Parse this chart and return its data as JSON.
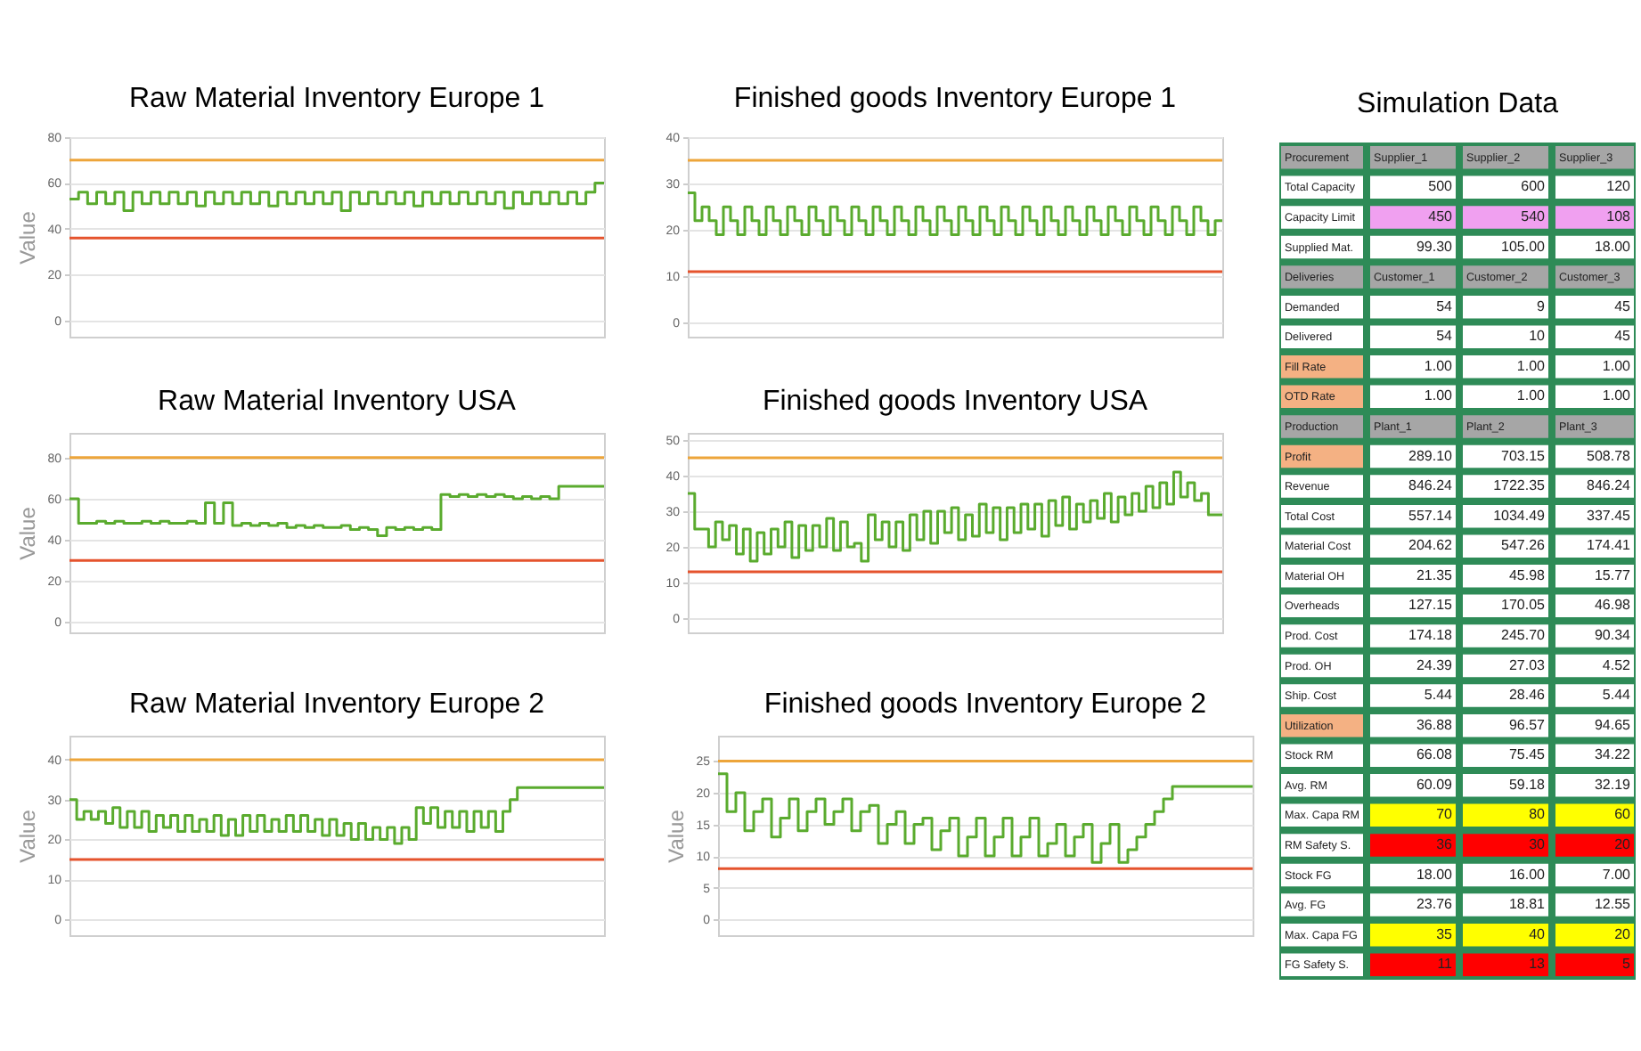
{
  "chart_data": [
    {
      "type": "step",
      "title": "Raw Material Inventory Europe 1",
      "ylabel": "Value",
      "categories": [
        null,
        null,
        null,
        null,
        null,
        null,
        null,
        null,
        null,
        null,
        null,
        null,
        null,
        null,
        null,
        null,
        null,
        null,
        null,
        null,
        null,
        null,
        null,
        null,
        null,
        null,
        null,
        null,
        null,
        null,
        null,
        null,
        null,
        null,
        null,
        null,
        null,
        null,
        null,
        null,
        null,
        null,
        null,
        null,
        null,
        null,
        null,
        null,
        null,
        null,
        null,
        null,
        null,
        null,
        null,
        null,
        null,
        null,
        null,
        null
      ],
      "ylim": [
        -7,
        80
      ],
      "yticks": [
        0,
        20,
        40,
        60,
        80
      ],
      "grid": "y",
      "tick_labels": "y",
      "series": [
        {
          "color": "#5aab2e",
          "values": [
            53,
            56,
            51,
            56,
            51,
            56,
            48,
            56,
            51,
            56,
            51,
            56,
            51,
            56,
            50,
            56,
            51,
            56,
            51,
            56,
            51,
            56,
            50,
            56,
            51,
            56,
            51,
            56,
            51,
            56,
            48,
            56,
            51,
            56,
            51,
            56,
            51,
            56,
            50,
            56,
            51,
            56,
            51,
            56,
            51,
            56,
            51,
            56,
            49,
            56,
            51,
            56,
            51,
            56,
            51,
            56,
            51,
            56,
            60,
            60
          ]
        }
      ],
      "ref_lines": [
        {
          "axis": "y",
          "value": 70,
          "color": "#eda53a"
        },
        {
          "axis": "y",
          "value": 36,
          "color": "#e5532d"
        }
      ]
    },
    {
      "type": "step",
      "title": "Finished goods Inventory Europe 1",
      "categories": [
        null,
        null,
        null,
        null,
        null,
        null,
        null,
        null,
        null,
        null,
        null,
        null,
        null,
        null,
        null,
        null,
        null,
        null,
        null,
        null,
        null,
        null,
        null,
        null,
        null,
        null,
        null,
        null,
        null,
        null,
        null,
        null,
        null,
        null,
        null,
        null,
        null,
        null,
        null,
        null,
        null,
        null,
        null,
        null,
        null,
        null,
        null,
        null,
        null,
        null,
        null,
        null,
        null,
        null,
        null,
        null,
        null,
        null,
        null,
        null,
        null,
        null,
        null,
        null,
        null,
        null,
        null,
        null,
        null,
        null,
        null,
        null,
        null,
        null,
        null,
        null
      ],
      "ylim": [
        -3,
        40
      ],
      "yticks": [
        0,
        10,
        20,
        30,
        40
      ],
      "grid": "y",
      "tick_labels": "y",
      "series": [
        {
          "color": "#5aab2e",
          "values": [
            28,
            22,
            25,
            22,
            19,
            25,
            22,
            19,
            25,
            22,
            19,
            25,
            22,
            19,
            25,
            22,
            19,
            25,
            22,
            19,
            25,
            22,
            19,
            25,
            22,
            19,
            25,
            22,
            19,
            25,
            22,
            19,
            25,
            22,
            19,
            25,
            22,
            19,
            25,
            22,
            19,
            25,
            22,
            19,
            25,
            22,
            19,
            25,
            22,
            19,
            25,
            22,
            19,
            25,
            22,
            19,
            25,
            22,
            19,
            25,
            22,
            19,
            25,
            22,
            19,
            25,
            22,
            19,
            25,
            22,
            19,
            25,
            22,
            19,
            22,
            22
          ]
        }
      ],
      "ref_lines": [
        {
          "axis": "y",
          "value": 35,
          "color": "#eda53a"
        },
        {
          "axis": "y",
          "value": 11,
          "color": "#e5532d"
        }
      ]
    },
    {
      "type": "other",
      "title": "Simulation Data",
      "annotations": [
        "Procurement",
        "Supplier_1",
        "Supplier_2",
        "Supplier_3",
        "Total Capacity",
        "500",
        "600",
        "120",
        "Capacity Limit",
        "450",
        "540",
        "108",
        "Supplied Mat.",
        "99.30",
        "105.00",
        "18.00",
        "Deliveries",
        "Customer_1",
        "Customer_2",
        "Customer_3",
        "Demanded",
        "54",
        "9",
        "45",
        "Delivered",
        "54",
        "10",
        "45",
        "Fill Rate",
        "1.00",
        "1.00",
        "1.00",
        "OTD Rate",
        "1.00",
        "1.00",
        "1.00",
        "Production",
        "Plant_1",
        "Plant_2",
        "Plant_3",
        "Profit",
        "289.10",
        "703.15",
        "508.78",
        "Revenue",
        "846.24",
        "1722.35",
        "846.24",
        "Total Cost",
        "557.14",
        "1034.49",
        "337.45",
        "Material Cost",
        "204.62",
        "547.26",
        "174.41",
        "Material OH",
        "21.35",
        "45.98",
        "15.77",
        "Overheads",
        "127.15",
        "170.05",
        "46.98",
        "Prod. Cost",
        "174.18",
        "245.70",
        "90.34",
        "Prod. OH",
        "24.39",
        "27.03",
        "4.52",
        "Ship. Cost",
        "5.44",
        "28.46",
        "5.44",
        "Utilization",
        "36.88",
        "96.57",
        "94.65",
        "Stock RM",
        "66.08",
        "75.45",
        "34.22",
        "Avg. RM",
        "60.09",
        "59.18",
        "32.19",
        "Max. Capa RM",
        "70",
        "80",
        "60",
        "RM Safety S.",
        "36",
        "30",
        "20",
        "Stock FG",
        "18.00",
        "16.00",
        "7.00",
        "Avg. FG",
        "23.76",
        "18.81",
        "12.55",
        "Max. Capa FG",
        "35",
        "40",
        "20",
        "FG Safety S.",
        "11",
        "13",
        "5"
      ],
      "colors": [
        "#a6a6a6",
        "#a6a6a6",
        "#a6a6a6",
        "#a6a6a6",
        "#ffffff",
        "#ffffff",
        "#ffffff",
        "#ffffff",
        "#ffffff",
        "#f0a0f0",
        "#f0a0f0",
        "#f0a0f0",
        "#ffffff",
        "#ffffff",
        "#ffffff",
        "#ffffff",
        "#a6a6a6",
        "#a6a6a6",
        "#a6a6a6",
        "#a6a6a6",
        "#ffffff",
        "#ffffff",
        "#ffffff",
        "#ffffff",
        "#ffffff",
        "#ffffff",
        "#ffffff",
        "#ffffff",
        "#f4b183",
        "#ffffff",
        "#ffffff",
        "#ffffff",
        "#f4b183",
        "#ffffff",
        "#ffffff",
        "#ffffff",
        "#a6a6a6",
        "#a6a6a6",
        "#a6a6a6",
        "#a6a6a6",
        "#f4b183",
        "#ffffff",
        "#ffffff",
        "#ffffff",
        "#ffffff",
        "#ffffff",
        "#ffffff",
        "#ffffff",
        "#ffffff",
        "#ffffff",
        "#ffffff",
        "#ffffff",
        "#ffffff",
        "#ffffff",
        "#ffffff",
        "#ffffff",
        "#ffffff",
        "#ffffff",
        "#ffffff",
        "#ffffff",
        "#ffffff",
        "#ffffff",
        "#ffffff",
        "#ffffff",
        "#ffffff",
        "#ffffff",
        "#ffffff",
        "#ffffff",
        "#ffffff",
        "#ffffff",
        "#ffffff",
        "#ffffff",
        "#ffffff",
        "#ffffff",
        "#ffffff",
        "#ffffff",
        "#f4b183",
        "#ffffff",
        "#ffffff",
        "#ffffff",
        "#ffffff",
        "#ffffff",
        "#ffffff",
        "#ffffff",
        "#ffffff",
        "#ffffff",
        "#ffffff",
        "#ffffff",
        "#ffffff",
        "#ffff00",
        "#ffff00",
        "#ffff00",
        "#ffffff",
        "#ff0000",
        "#ff0000",
        "#ff0000",
        "#ffffff",
        "#ffffff",
        "#ffffff",
        "#ffffff",
        "#ffffff",
        "#ffffff",
        "#ffffff",
        "#ffffff",
        "#ffffff",
        "#ffff00",
        "#ffff00",
        "#ffff00",
        "#ffffff",
        "#ff0000",
        "#ff0000",
        "#ff0000"
      ]
    },
    {
      "type": "step",
      "title": "Raw Material Inventory USA",
      "ylabel": "Value",
      "categories": [
        null,
        null,
        null,
        null,
        null,
        null,
        null,
        null,
        null,
        null,
        null,
        null,
        null,
        null,
        null,
        null,
        null,
        null,
        null,
        null,
        null,
        null,
        null,
        null,
        null,
        null,
        null,
        null,
        null,
        null,
        null,
        null,
        null,
        null,
        null,
        null,
        null,
        null,
        null,
        null,
        null,
        null,
        null,
        null,
        null,
        null,
        null,
        null,
        null,
        null,
        null,
        null,
        null,
        null,
        null,
        null,
        null,
        null,
        null,
        null
      ],
      "ylim": [
        -5,
        92
      ],
      "yticks": [
        0,
        20,
        40,
        60,
        80
      ],
      "grid": "y",
      "tick_labels": "y",
      "series": [
        {
          "color": "#5aab2e",
          "values": [
            60,
            48,
            48,
            49,
            48,
            49,
            48,
            48,
            49,
            48,
            49,
            48,
            48,
            49,
            48,
            58,
            48,
            58,
            47,
            48,
            47,
            48,
            47,
            48,
            46,
            47,
            46,
            47,
            46,
            46,
            47,
            45,
            46,
            45,
            42,
            46,
            45,
            46,
            45,
            46,
            45,
            62,
            61,
            62,
            61,
            62,
            61,
            62,
            61,
            60,
            61,
            60,
            61,
            60,
            66,
            66,
            66,
            66,
            66,
            66
          ]
        }
      ],
      "ref_lines": [
        {
          "axis": "y",
          "value": 80,
          "color": "#eda53a"
        },
        {
          "axis": "y",
          "value": 30,
          "color": "#e5532d"
        }
      ]
    },
    {
      "type": "step",
      "title": "Finished goods Inventory USA",
      "categories": [
        null,
        null,
        null,
        null,
        null,
        null,
        null,
        null,
        null,
        null,
        null,
        null,
        null,
        null,
        null,
        null,
        null,
        null,
        null,
        null,
        null,
        null,
        null,
        null,
        null,
        null,
        null,
        null,
        null,
        null,
        null,
        null,
        null,
        null,
        null,
        null,
        null,
        null,
        null,
        null,
        null,
        null,
        null,
        null,
        null,
        null,
        null,
        null,
        null,
        null,
        null,
        null,
        null,
        null,
        null,
        null,
        null,
        null,
        null,
        null,
        null,
        null,
        null,
        null,
        null,
        null,
        null,
        null,
        null,
        null,
        null,
        null,
        null,
        null,
        null,
        null,
        null,
        null
      ],
      "ylim": [
        -4,
        52
      ],
      "yticks": [
        0,
        10,
        20,
        30,
        40,
        50
      ],
      "grid": "y",
      "tick_labels": "y",
      "series": [
        {
          "color": "#5aab2e",
          "values": [
            35,
            25,
            25,
            20,
            27,
            22,
            26,
            18,
            25,
            16,
            24,
            18,
            25,
            20,
            27,
            17,
            26,
            19,
            26,
            20,
            28,
            19,
            27,
            20,
            21,
            16,
            29,
            22,
            27,
            20,
            27,
            19,
            29,
            22,
            30,
            21,
            30,
            24,
            31,
            22,
            29,
            23,
            32,
            24,
            31,
            22,
            31,
            24,
            32,
            25,
            32,
            23,
            33,
            26,
            34,
            25,
            32,
            27,
            33,
            28,
            35,
            27,
            34,
            29,
            35,
            30,
            37,
            31,
            38,
            32,
            41,
            34,
            38,
            33,
            35,
            29,
            29,
            29
          ]
        }
      ],
      "ref_lines": [
        {
          "axis": "y",
          "value": 45,
          "color": "#eda53a"
        },
        {
          "axis": "y",
          "value": 13,
          "color": "#e5532d"
        }
      ]
    },
    {
      "type": "step",
      "title": "Raw Material Inventory Europe 2",
      "ylabel": "Value",
      "categories": [
        null,
        null,
        null,
        null,
        null,
        null,
        null,
        null,
        null,
        null,
        null,
        null,
        null,
        null,
        null,
        null,
        null,
        null,
        null,
        null,
        null,
        null,
        null,
        null,
        null,
        null,
        null,
        null,
        null,
        null,
        null,
        null,
        null,
        null,
        null,
        null,
        null,
        null,
        null,
        null,
        null,
        null,
        null,
        null,
        null,
        null,
        null,
        null,
        null,
        null,
        null,
        null,
        null,
        null,
        null,
        null,
        null,
        null,
        null,
        null,
        null,
        null,
        null,
        null,
        null,
        null,
        null,
        null,
        null,
        null,
        null,
        null,
        null,
        null,
        null
      ],
      "ylim": [
        -4,
        46
      ],
      "yticks": [
        0,
        10,
        20,
        30,
        40
      ],
      "grid": "y",
      "tick_labels": "y",
      "series": [
        {
          "color": "#5aab2e",
          "values": [
            30,
            25,
            27,
            25,
            27,
            24,
            28,
            23,
            27,
            23,
            27,
            22,
            26,
            23,
            26,
            22,
            26,
            22,
            25,
            22,
            26,
            21,
            25,
            21,
            26,
            22,
            26,
            22,
            25,
            22,
            26,
            22,
            26,
            22,
            25,
            21,
            25,
            21,
            24,
            20,
            24,
            20,
            23,
            20,
            23,
            19,
            23,
            20,
            28,
            24,
            28,
            23,
            27,
            23,
            27,
            22,
            27,
            23,
            27,
            22,
            27,
            30,
            33,
            33,
            33,
            33,
            33,
            33,
            33,
            33,
            33,
            33,
            33,
            33,
            33
          ]
        }
      ],
      "ref_lines": [
        {
          "axis": "y",
          "value": 40,
          "color": "#eda53a"
        },
        {
          "axis": "y",
          "value": 15,
          "color": "#e5532d"
        }
      ]
    },
    {
      "type": "step",
      "title": "Finished goods Inventory Europe 2",
      "ylabel": "Value",
      "categories": [
        null,
        null,
        null,
        null,
        null,
        null,
        null,
        null,
        null,
        null,
        null,
        null,
        null,
        null,
        null,
        null,
        null,
        null,
        null,
        null,
        null,
        null,
        null,
        null,
        null,
        null,
        null,
        null,
        null,
        null,
        null,
        null,
        null,
        null,
        null,
        null,
        null,
        null,
        null,
        null,
        null,
        null,
        null,
        null,
        null,
        null,
        null,
        null,
        null,
        null,
        null,
        null,
        null,
        null,
        null,
        null,
        null,
        null,
        null,
        null,
        null
      ],
      "ylim": [
        -2.5,
        29
      ],
      "yticks": [
        0,
        5,
        10,
        15,
        20,
        25
      ],
      "grid": "y",
      "tick_labels": "y",
      "series": [
        {
          "color": "#5aab2e",
          "values": [
            23,
            17,
            20,
            14,
            17,
            19,
            13,
            16,
            19,
            14,
            17,
            19,
            15,
            17,
            19,
            14,
            17,
            18,
            12,
            15,
            17,
            12,
            15,
            16,
            11,
            14,
            16,
            10,
            13,
            16,
            10,
            13,
            16,
            10,
            13,
            16,
            10,
            12,
            15,
            10,
            13,
            15,
            9,
            12,
            15,
            9,
            11,
            13,
            15,
            17,
            19,
            21,
            21,
            21,
            21,
            21,
            21,
            21,
            21,
            21,
            21
          ]
        }
      ],
      "ref_lines": [
        {
          "axis": "y",
          "value": 25,
          "color": "#eda53a"
        },
        {
          "axis": "y",
          "value": 8,
          "color": "#e5532d"
        }
      ]
    }
  ]
}
